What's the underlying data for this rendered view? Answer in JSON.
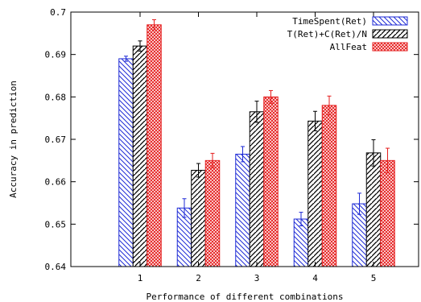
{
  "chart_data": {
    "type": "bar",
    "xlabel": "Performance of different combinations",
    "ylabel": "Accuracy in prediction",
    "categories": [
      "1",
      "2",
      "3",
      "4",
      "5"
    ],
    "ylim": [
      0.64,
      0.7
    ],
    "yticks": [
      "0.64",
      "0.65",
      "0.66",
      "0.67",
      "0.68",
      "0.69",
      "0.7"
    ],
    "grid": false,
    "legend_position": "top-right",
    "series": [
      {
        "name": "TimeSpent(Ret)",
        "color": "#1f2bd6",
        "pattern": "diagonal-back",
        "values": [
          0.689,
          0.6538,
          0.6665,
          0.6512,
          0.6548
        ],
        "errors": [
          0.0006,
          0.0022,
          0.0018,
          0.0016,
          0.0025
        ]
      },
      {
        "name": "T(Ret)+C(Ret)/N",
        "color": "#000000",
        "pattern": "diagonal-forward",
        "values": [
          0.692,
          0.6627,
          0.6765,
          0.6743,
          0.6668
        ],
        "errors": [
          0.0012,
          0.0016,
          0.0025,
          0.0023,
          0.0031
        ]
      },
      {
        "name": "AllFeat",
        "color": "#e51e1e",
        "pattern": "crosshatch",
        "values": [
          0.697,
          0.665,
          0.68,
          0.678,
          0.665
        ],
        "errors": [
          0.0012,
          0.0017,
          0.0015,
          0.0022,
          0.0029
        ]
      }
    ]
  }
}
